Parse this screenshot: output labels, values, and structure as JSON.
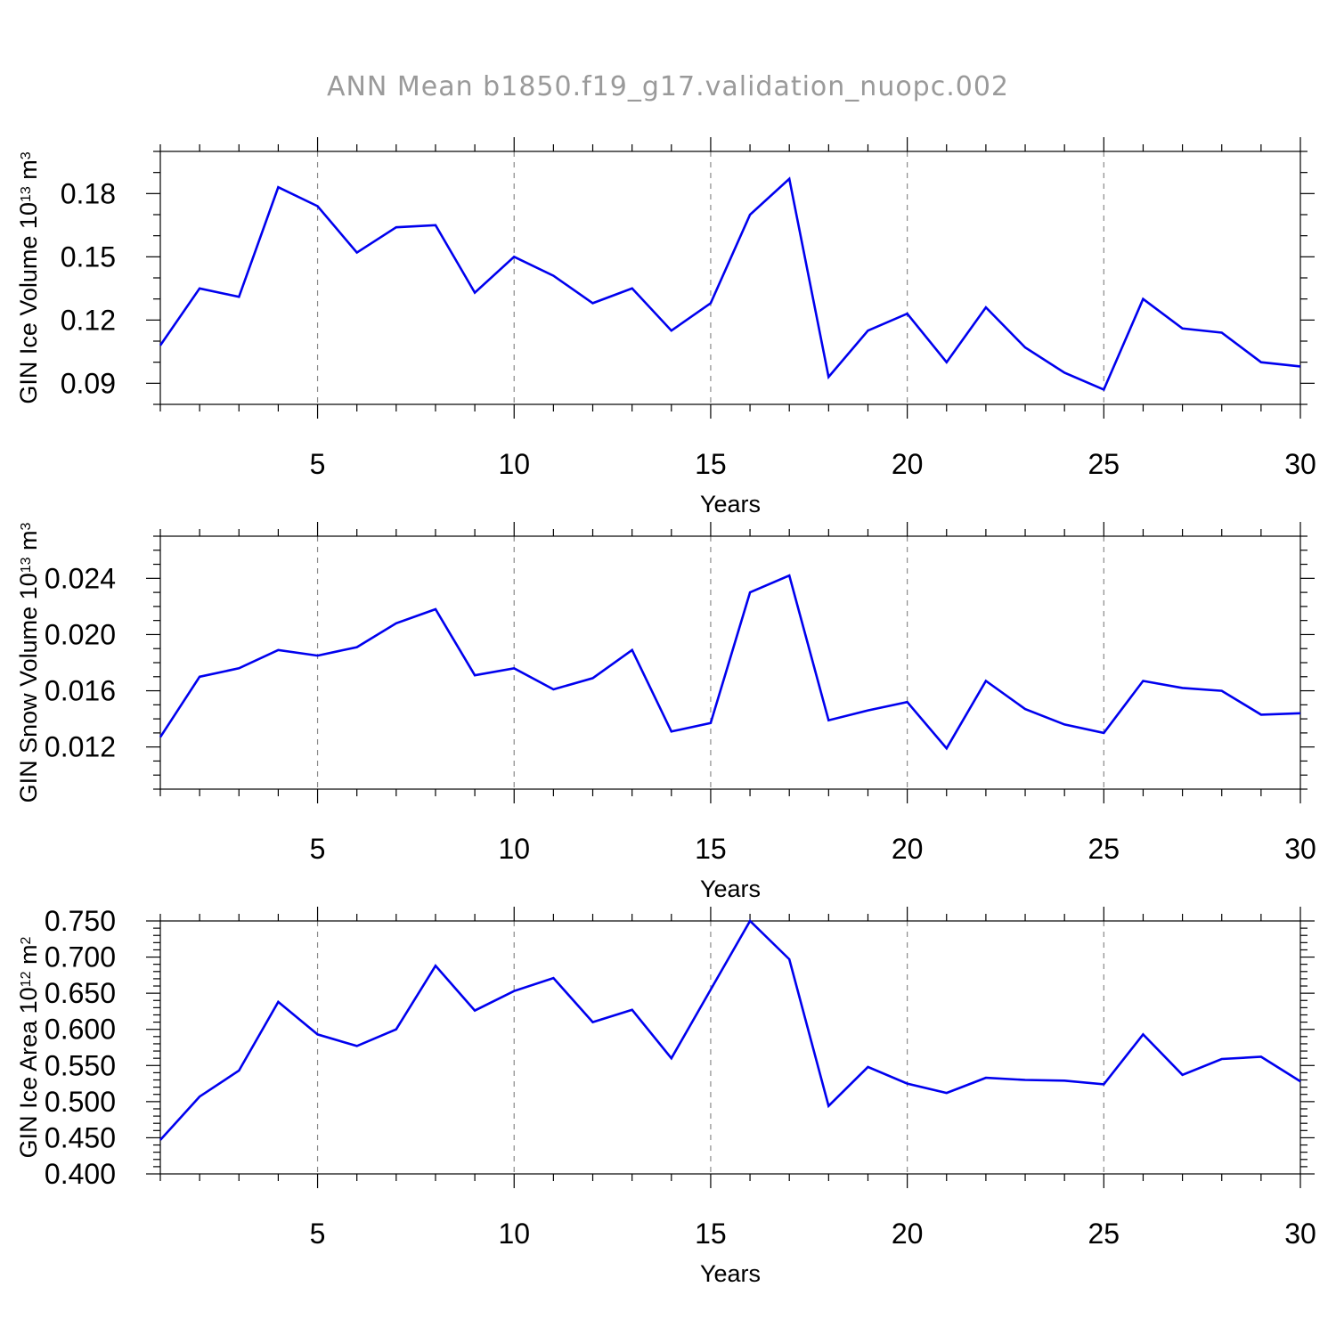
{
  "figure": {
    "title": "ANN Mean b1850.f19_g17.validation_nuopc.002",
    "line_color": "#0000ee",
    "grid_color": "#8a8a8a",
    "title_color": "#9a9a9a"
  },
  "chart_data": [
    {
      "type": "line",
      "xlabel": "Years",
      "ylabel": "GIN Ice Volume 10",
      "ylabel_exponent": "13",
      "ylabel_unit": " m",
      "ylabel_unit_exponent": "3",
      "xlim": [
        1,
        30
      ],
      "ylim": [
        0.08,
        0.2
      ],
      "xticks": [
        5,
        10,
        15,
        20,
        25,
        30
      ],
      "xtick_labels": [
        "5",
        "10",
        "15",
        "20",
        "25",
        "30"
      ],
      "yticks": [
        0.09,
        0.12,
        0.15,
        0.18
      ],
      "ytick_labels": [
        "0.09",
        "0.12",
        "0.15",
        "0.18"
      ],
      "y_minor_step": 0.01,
      "x": [
        1,
        2,
        3,
        4,
        5,
        6,
        7,
        8,
        9,
        10,
        11,
        12,
        13,
        14,
        15,
        16,
        17,
        18,
        19,
        20,
        21,
        22,
        23,
        24,
        25,
        26,
        27,
        28,
        29,
        30
      ],
      "series": [
        {
          "values": [
            0.108,
            0.135,
            0.131,
            0.183,
            0.174,
            0.152,
            0.164,
            0.165,
            0.133,
            0.15,
            0.141,
            0.128,
            0.135,
            0.115,
            0.128,
            0.17,
            0.187,
            0.093,
            0.115,
            0.123,
            0.1,
            0.126,
            0.107,
            0.095,
            0.087,
            0.13,
            0.116,
            0.114,
            0.1,
            0.098
          ]
        }
      ],
      "grid": "dashed vertical lines at major x ticks"
    },
    {
      "type": "line",
      "xlabel": "Years",
      "ylabel": "GIN Snow Volume 10",
      "ylabel_exponent": "13",
      "ylabel_unit": " m",
      "ylabel_unit_exponent": "3",
      "xlim": [
        1,
        30
      ],
      "ylim": [
        0.009,
        0.027
      ],
      "xticks": [
        5,
        10,
        15,
        20,
        25,
        30
      ],
      "xtick_labels": [
        "5",
        "10",
        "15",
        "20",
        "25",
        "30"
      ],
      "yticks": [
        0.012,
        0.016,
        0.02,
        0.024
      ],
      "ytick_labels": [
        "0.012",
        "0.016",
        "0.020",
        "0.024"
      ],
      "y_minor_step": 0.001,
      "x": [
        1,
        2,
        3,
        4,
        5,
        6,
        7,
        8,
        9,
        10,
        11,
        12,
        13,
        14,
        15,
        16,
        17,
        18,
        19,
        20,
        21,
        22,
        23,
        24,
        25,
        26,
        27,
        28,
        29,
        30
      ],
      "series": [
        {
          "values": [
            0.0127,
            0.017,
            0.0176,
            0.0189,
            0.0185,
            0.0191,
            0.0208,
            0.0218,
            0.0171,
            0.0176,
            0.0161,
            0.0169,
            0.0189,
            0.0131,
            0.0137,
            0.023,
            0.0242,
            0.0139,
            0.0146,
            0.0152,
            0.0119,
            0.0167,
            0.0147,
            0.0136,
            0.013,
            0.0167,
            0.0162,
            0.016,
            0.0143,
            0.0144
          ]
        }
      ],
      "grid": "dashed vertical lines at major x ticks"
    },
    {
      "type": "line",
      "xlabel": "Years",
      "ylabel": "GIN Ice Area 10",
      "ylabel_exponent": "12",
      "ylabel_unit": " m",
      "ylabel_unit_exponent": "2",
      "xlim": [
        1,
        30
      ],
      "ylim": [
        0.4,
        0.75
      ],
      "xticks": [
        5,
        10,
        15,
        20,
        25,
        30
      ],
      "xtick_labels": [
        "5",
        "10",
        "15",
        "20",
        "25",
        "30"
      ],
      "yticks": [
        0.4,
        0.45,
        0.5,
        0.55,
        0.6,
        0.65,
        0.7,
        0.75
      ],
      "ytick_labels": [
        "0.400",
        "0.450",
        "0.500",
        "0.550",
        "0.600",
        "0.650",
        "0.700",
        "0.750"
      ],
      "y_minor_step": 0.01,
      "x": [
        1,
        2,
        3,
        4,
        5,
        6,
        7,
        8,
        9,
        10,
        11,
        12,
        13,
        14,
        15,
        16,
        17,
        18,
        19,
        20,
        21,
        22,
        23,
        24,
        25,
        26,
        27,
        28,
        29,
        30
      ],
      "series": [
        {
          "values": [
            0.447,
            0.507,
            0.543,
            0.638,
            0.593,
            0.577,
            0.6,
            0.688,
            0.626,
            0.653,
            0.671,
            0.61,
            0.627,
            0.56,
            0.655,
            0.75,
            0.697,
            0.494,
            0.548,
            0.525,
            0.512,
            0.533,
            0.53,
            0.529,
            0.524,
            0.593,
            0.537,
            0.559,
            0.562,
            0.528
          ]
        }
      ],
      "grid": "dashed vertical lines at major x ticks"
    }
  ]
}
